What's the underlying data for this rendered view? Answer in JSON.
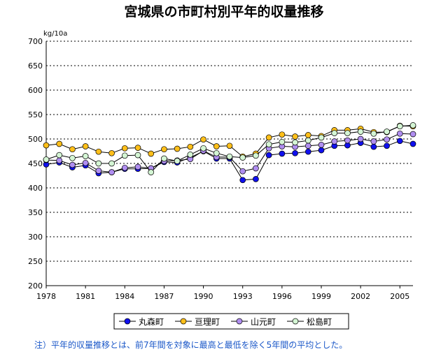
{
  "chart_data": {
    "type": "line",
    "title": "宮城県の市町村別平年的収量推移",
    "ylabel": "kg/10a",
    "xlabel": "",
    "ylim": [
      200,
      700
    ],
    "yticks": [
      200,
      250,
      300,
      350,
      400,
      450,
      500,
      550,
      600,
      650,
      700
    ],
    "x": [
      1978,
      1979,
      1980,
      1981,
      1982,
      1983,
      1984,
      1985,
      1986,
      1987,
      1988,
      1989,
      1990,
      1991,
      1992,
      1993,
      1994,
      1995,
      1996,
      1997,
      1998,
      1999,
      2000,
      2001,
      2002,
      2003,
      2004,
      2005,
      2006
    ],
    "xticks": [
      1978,
      1981,
      1984,
      1987,
      1990,
      1993,
      1996,
      1999,
      2002,
      2005
    ],
    "grid": "horizontal dashed",
    "series": [
      {
        "name": "丸森町",
        "color": "#1010ee",
        "values": [
          448,
          452,
          442,
          446,
          430,
          432,
          439,
          439,
          440,
          453,
          452,
          462,
          475,
          460,
          460,
          416,
          418,
          467,
          470,
          471,
          474,
          477,
          486,
          487,
          492,
          484,
          486,
          496,
          490
        ]
      },
      {
        "name": "亘理町",
        "color": "#ffbf1a",
        "values": [
          487,
          490,
          479,
          485,
          474,
          471,
          481,
          482,
          470,
          479,
          480,
          484,
          499,
          485,
          486,
          464,
          470,
          503,
          509,
          505,
          508,
          506,
          518,
          518,
          521,
          514,
          514,
          527,
          526
        ]
      },
      {
        "name": "山元町",
        "color": "#b08ef0",
        "values": [
          457,
          456,
          447,
          451,
          435,
          432,
          441,
          443,
          440,
          455,
          456,
          459,
          476,
          463,
          463,
          434,
          440,
          481,
          485,
          484,
          486,
          488,
          495,
          497,
          500,
          495,
          499,
          511,
          510
        ]
      },
      {
        "name": "松島町",
        "color": "#d4f5d4",
        "values": [
          458,
          467,
          461,
          465,
          450,
          450,
          466,
          467,
          432,
          460,
          455,
          468,
          481,
          471,
          464,
          462,
          466,
          489,
          494,
          493,
          497,
          503,
          512,
          512,
          515,
          511,
          515,
          526,
          528
        ]
      }
    ],
    "legend_position": "bottom"
  },
  "note": "注）平年的収量推移とは、前7年間を対象に最高と最低を除く5年間の平均とした。"
}
